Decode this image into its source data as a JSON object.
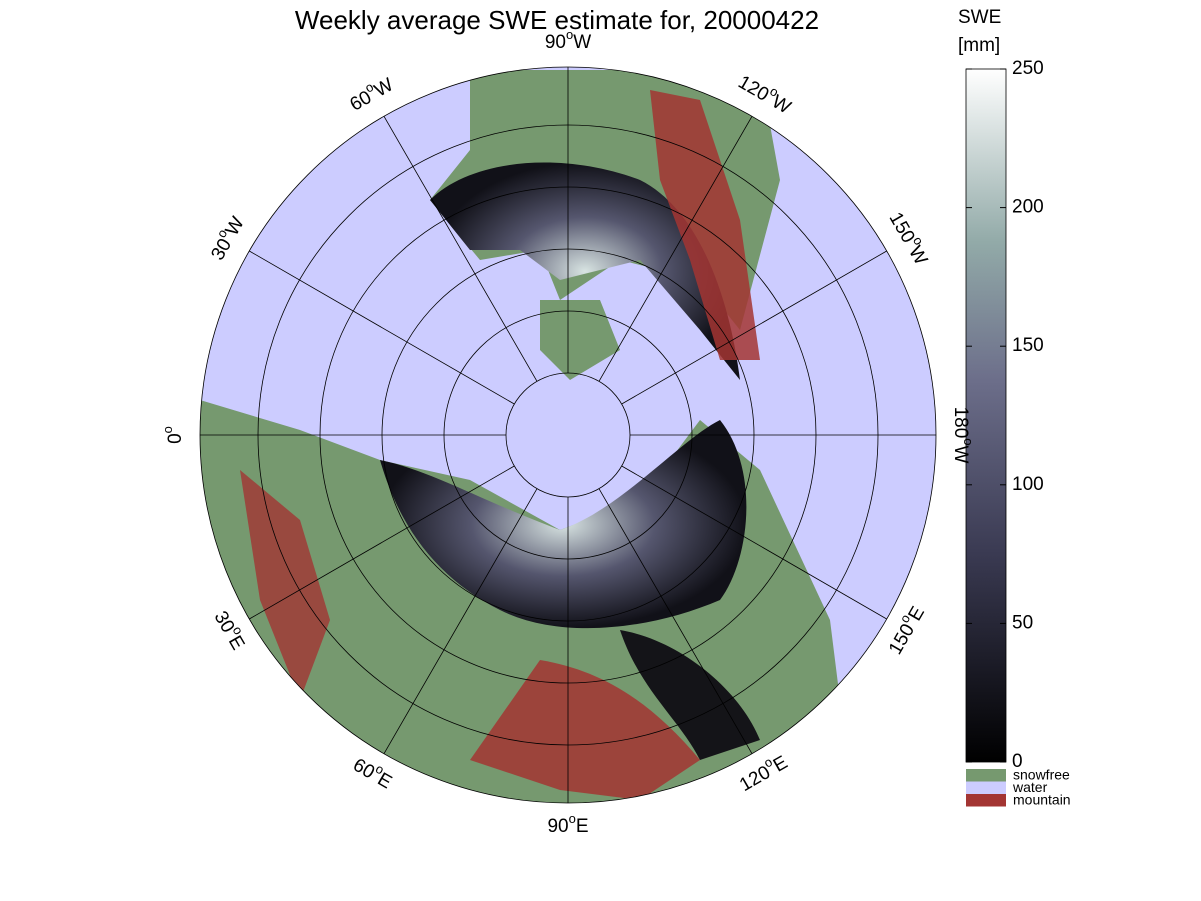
{
  "title": "Weekly average SWE estimate for, 20000422",
  "degree_symbol": "o",
  "meridians": [
    {
      "deg": "0",
      "lon": 0
    },
    {
      "deg": "30",
      "hemi": "W",
      "lon": -30
    },
    {
      "deg": "60",
      "hemi": "W",
      "lon": -60
    },
    {
      "deg": "90",
      "hemi": "W",
      "lon": -90
    },
    {
      "deg": "120",
      "hemi": "W",
      "lon": -120
    },
    {
      "deg": "150",
      "hemi": "W",
      "lon": -150
    },
    {
      "deg": "180",
      "hemi": "W",
      "lon": -180
    },
    {
      "deg": "150",
      "hemi": "E",
      "lon": 150
    },
    {
      "deg": "120",
      "hemi": "E",
      "lon": 120
    },
    {
      "deg": "90",
      "hemi": "E",
      "lon": 90
    },
    {
      "deg": "60",
      "hemi": "E",
      "lon": 60
    },
    {
      "deg": "30",
      "hemi": "E",
      "lon": 30
    }
  ],
  "colorbar": {
    "label": "SWE",
    "unit": "[mm]",
    "lim": [
      0,
      250
    ],
    "ticks": [
      0,
      50,
      100,
      150,
      200,
      250
    ]
  },
  "legend": [
    {
      "name": "snowfree",
      "color": "#76996f"
    },
    {
      "name": "water",
      "color": "#ccccff"
    },
    {
      "name": "mountain",
      "color": "#a33533"
    }
  ]
}
